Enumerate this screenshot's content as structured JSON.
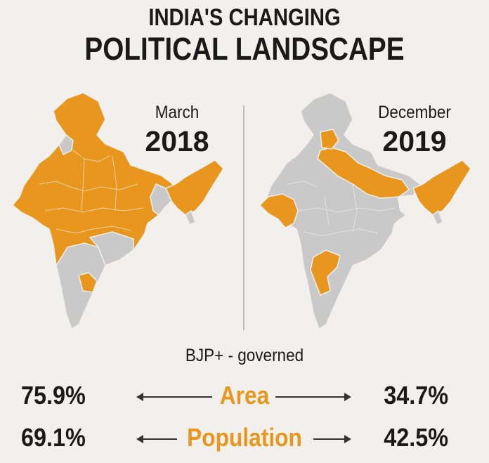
{
  "title": {
    "line1": "INDIA'S CHANGING",
    "line2": "POLITICAL LANDSCAPE"
  },
  "maps": [
    {
      "month": "March",
      "year": "2018"
    },
    {
      "month": "December",
      "year": "2019"
    }
  ],
  "colors": {
    "bjp_governed": "#e8961e",
    "other": "#c9c9c9",
    "background": "#f1f0ed"
  },
  "caption": "BJP+ - governed",
  "stats": [
    {
      "metric": "Area",
      "left": "75.9%",
      "right": "34.7%"
    },
    {
      "metric": "Population",
      "left": "69.1%",
      "right": "42.5%"
    }
  ]
}
